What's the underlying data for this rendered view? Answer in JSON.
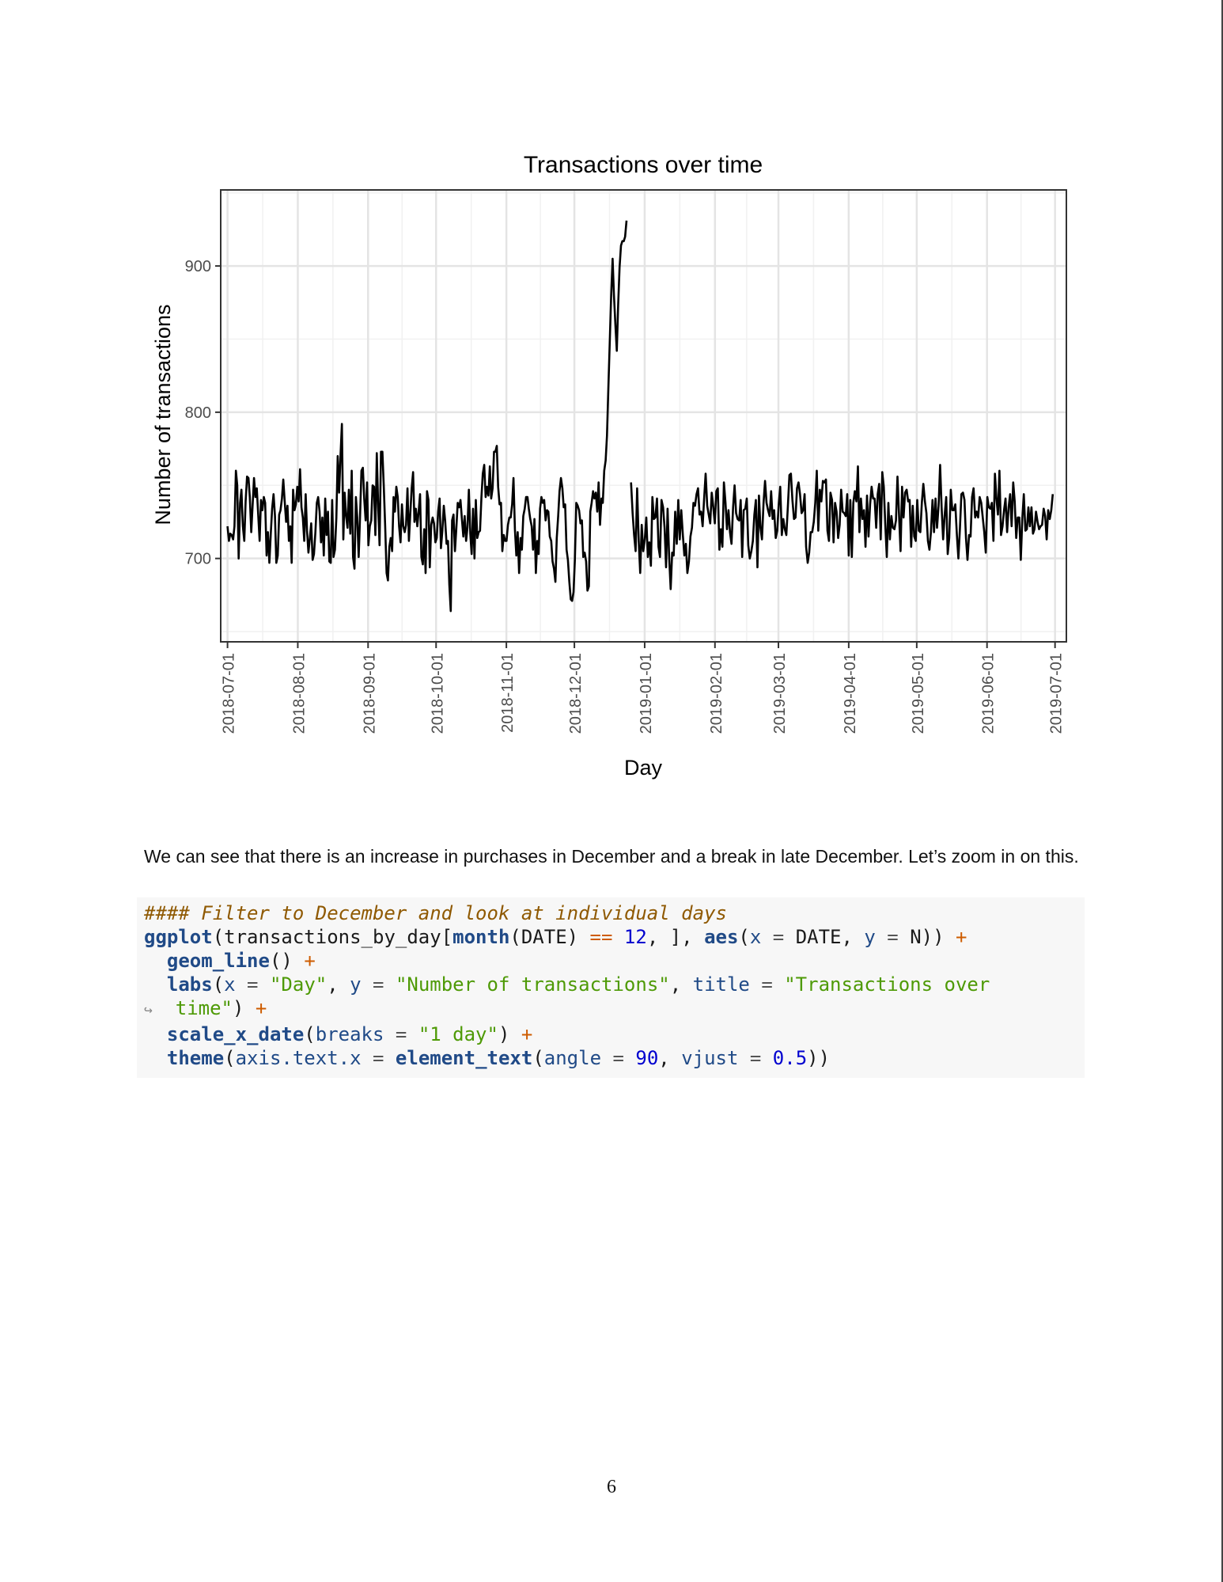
{
  "chart_data": {
    "type": "line",
    "title": "Transactions over time",
    "xlabel": "Day",
    "ylabel": "Number of transactions",
    "x_tick_labels": [
      "2018-07-01",
      "2018-08-01",
      "2018-09-01",
      "2018-10-01",
      "2018-11-01",
      "2018-12-01",
      "2019-01-01",
      "2019-02-01",
      "2019-03-01",
      "2019-04-01",
      "2019-05-01",
      "2019-06-01",
      "2019-07-01"
    ],
    "y_ticks": [
      700,
      800,
      900
    ],
    "xlim": [
      "2018-06-28",
      "2019-07-06"
    ],
    "ylim": [
      643,
      952
    ],
    "grid": true,
    "legend": "none",
    "line_color": "#000000",
    "series": [
      {
        "x_start": "2018-07-01",
        "x_end": "2018-12-24",
        "values": [
          722,
          712,
          717,
          716,
          713,
          722,
          760,
          750,
          700,
          738,
          747,
          722,
          712,
          739,
          756,
          755,
          742,
          718,
          736,
          755,
          742,
          748,
          730,
          712,
          740,
          733,
          742,
          738,
          702,
          718,
          697,
          717,
          734,
          744,
          729,
          697,
          702,
          730,
          733,
          741,
          754,
          739,
          725,
          736,
          712,
          722,
          697,
          747,
          733,
          737,
          749,
          739,
          761,
          735,
          728,
          712,
          744,
          719,
          704,
          714,
          724,
          699,
          703,
          718,
          738,
          742,
          732,
          711,
          728,
          702,
          741,
          716,
          732,
          698,
          697,
          740,
          701,
          706,
          728,
          770,
          745,
          771,
          792,
          713,
          745,
          729,
          721,
          747,
          717,
          760,
          701,
          693,
          742,
          728,
          701,
          728,
          760,
          762,
          741,
          726,
          752,
          709,
          722,
          726,
          750,
          749,
          716,
          772,
          735,
          709,
          773,
          773,
          750,
          722,
          690,
          685,
          708,
          714,
          705,
          742,
          732,
          749,
          742,
          722,
          711,
          737,
          722,
          718,
          723,
          748,
          712,
          730,
          748,
          759,
          725,
          734,
          722,
          732,
          744,
          701,
          696,
          720,
          690,
          746,
          740,
          694,
          723,
          728,
          724,
          711,
          714,
          732,
          741,
          707,
          719,
          736,
          726,
          710,
          712,
          682,
          664,
          726,
          730,
          705,
          720,
          738,
          735,
          740,
          727,
          715,
          729,
          712,
          721,
          747,
          717,
          703,
          734,
          700,
          740,
          714,
          718,
          719,
          742,
          758,
          764,
          742,
          749,
          743,
          763,
          741,
          748,
          773,
          773,
          777,
          749,
          737,
          738,
          705,
          716,
          712,
          712,
          723,
          728,
          728,
          737,
          755,
          720,
          702,
          718,
          690,
          714,
          706,
          729,
          734,
          742,
          742,
          734,
          727,
          722,
          706,
          727,
          690,
          712,
          703,
          734,
          742,
          738,
          740,
          726,
          733,
          732,
          715,
          712,
          698,
          693,
          684,
          714,
          729,
          746,
          755,
          748,
          735,
          737,
          706,
          699,
          684,
          672,
          671,
          677,
          699,
          738,
          736,
          733,
          724,
          726,
          701,
          704,
          698,
          678,
          681,
          732,
          738,
          746,
          741,
          745,
          732,
          752,
          723,
          741,
          738,
          760,
          767,
          784,
          818,
          848,
          880,
          905,
          880,
          860,
          842,
          873,
          899,
          914,
          917,
          917,
          920,
          931
        ]
      },
      {
        "x_start": "2018-12-26",
        "x_end": "2019-06-30",
        "values": [
          752,
          731,
          716,
          705,
          748,
          712,
          690,
          723,
          705,
          713,
          728,
          701,
          711,
          695,
          742,
          727,
          728,
          741,
          708,
          701,
          740,
          735,
          721,
          694,
          734,
          702,
          679,
          704,
          702,
          732,
          710,
          740,
          713,
          733,
          716,
          702,
          710,
          690,
          698,
          715,
          721,
          738,
          736,
          744,
          748,
          730,
          732,
          722,
          741,
          758,
          736,
          730,
          724,
          745,
          735,
          724,
          746,
          748,
          706,
          720,
          708,
          752,
          738,
          720,
          733,
          718,
          710,
          735,
          750,
          731,
          727,
          726,
          740,
          701,
          733,
          734,
          741,
          709,
          700,
          705,
          712,
          730,
          740,
          694,
          743,
          721,
          713,
          738,
          753,
          738,
          733,
          729,
          746,
          727,
          733,
          714,
          719,
          737,
          749,
          716,
          727,
          720,
          716,
          736,
          757,
          758,
          740,
          727,
          728,
          748,
          752,
          744,
          731,
          733,
          744,
          708,
          697,
          704,
          718,
          718,
          725,
          738,
          760,
          719,
          747,
          739,
          753,
          752,
          754,
          719,
          712,
          745,
          740,
          711,
          738,
          732,
          714,
          723,
          747,
          732,
          731,
          729,
          744,
          702,
          740,
          701,
          738,
          746,
          739,
          763,
          718,
          741,
          727,
          733,
          708,
          743,
          715,
          737,
          749,
          741,
          741,
          721,
          744,
          751,
          713,
          759,
          749,
          723,
          701,
          738,
          713,
          729,
          721,
          720,
          726,
          756,
          731,
          705,
          749,
          728,
          745,
          747,
          739,
          740,
          708,
          736,
          715,
          712,
          740,
          719,
          718,
          738,
          751,
          739,
          731,
          712,
          706,
          718,
          740,
          718,
          741,
          721,
          736,
          764,
          735,
          713,
          730,
          742,
          703,
          714,
          747,
          733,
          733,
          737,
          716,
          700,
          720,
          744,
          745,
          740,
          714,
          699,
          716,
          715,
          742,
          748,
          728,
          732,
          728,
          742,
          738,
          728,
          718,
          704,
          742,
          735,
          734,
          738,
          712,
          758,
          741,
          730,
          760,
          716,
          722,
          733,
          741,
          718,
          735,
          744,
          722,
          752,
          739,
          714,
          728,
          728,
          699,
          727,
          744,
          719,
          720,
          735,
          722,
          735,
          717,
          720,
          732,
          725,
          720,
          722,
          723,
          734,
          729,
          713,
          733,
          727,
          733,
          744
        ]
      }
    ]
  },
  "body": {
    "paragraph": "We can see that there is an increase in purchases in December and a break in late December. Let’s zoom in on this."
  },
  "code": {
    "comment": "#### Filter to December and look at individual days",
    "l2_fn": "ggplot",
    "l2_a": "(transactions_by_day[",
    "l2_fn2": "month",
    "l2_b": "(DATE) ",
    "l2_op": "==",
    "l2_sp": " ",
    "l2_num": "12",
    "l2_c": ", ], ",
    "l2_fn3": "aes",
    "l2_d": "(",
    "l2_arg1": "x",
    "l2_eq1": " = ",
    "l2_e": "DATE, ",
    "l2_arg2": "y",
    "l2_eq2": " = ",
    "l2_f": "N)) ",
    "l2_plus": "+",
    "l3_indent": "  ",
    "l3_fn": "geom_line",
    "l3_a": "() ",
    "l3_plus": "+",
    "l4_indent": "  ",
    "l4_fn": "labs",
    "l4_a": "(",
    "l4_arg1": "x",
    "l4_eq1": " = ",
    "l4_s1": "\"Day\"",
    "l4_b": ", ",
    "l4_arg2": "y",
    "l4_eq2": " = ",
    "l4_s2": "\"Number of transactions\"",
    "l4_c": ", ",
    "l4_arg3": "title",
    "l4_eq3": " = ",
    "l4_s3": "\"Transactions over",
    "l5_wrap": "↪",
    "l5_indent": "  ",
    "l5_s": "time\"",
    "l5_a": ") ",
    "l5_plus": "+",
    "l6_indent": "  ",
    "l6_fn": "scale_x_date",
    "l6_a": "(",
    "l6_arg": "breaks",
    "l6_eq": " = ",
    "l6_s": "\"1 day\"",
    "l6_b": ") ",
    "l6_plus": "+",
    "l7_indent": "  ",
    "l7_fn": "theme",
    "l7_a": "(",
    "l7_arg1": "axis.text.x",
    "l7_eq1": " = ",
    "l7_fn2": "element_text",
    "l7_b": "(",
    "l7_arg2": "angle",
    "l7_eq2": " = ",
    "l7_num1": "90",
    "l7_c": ", ",
    "l7_arg3": "vjust",
    "l7_eq3": " = ",
    "l7_num2": "0.5",
    "l7_d": "))"
  },
  "page_number": "6"
}
